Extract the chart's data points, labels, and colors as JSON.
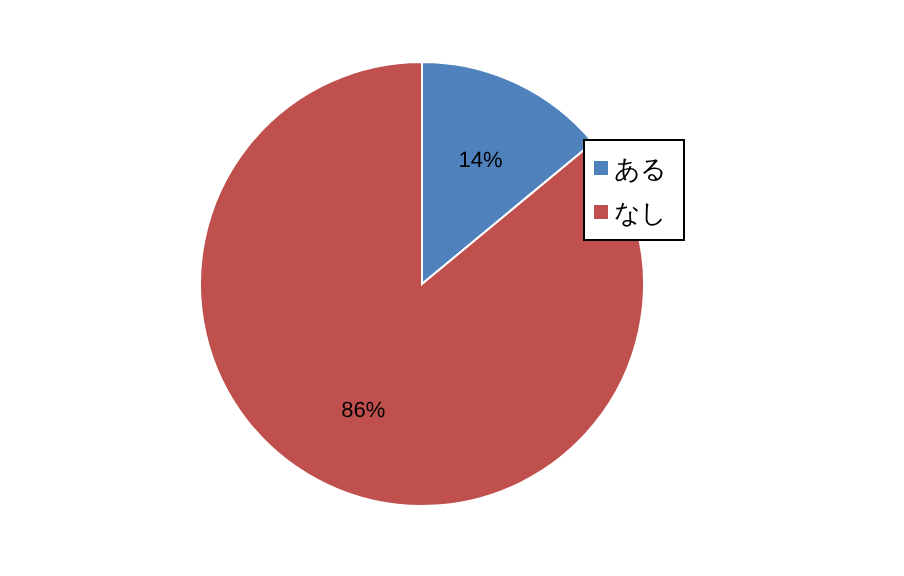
{
  "chart_data": {
    "type": "pie",
    "categories": [
      "ある",
      "なし"
    ],
    "values": [
      14,
      86
    ],
    "colors": [
      "#4f81bd",
      "#c0504d"
    ],
    "value_labels": [
      "14%",
      "86%"
    ],
    "legend": "right"
  }
}
